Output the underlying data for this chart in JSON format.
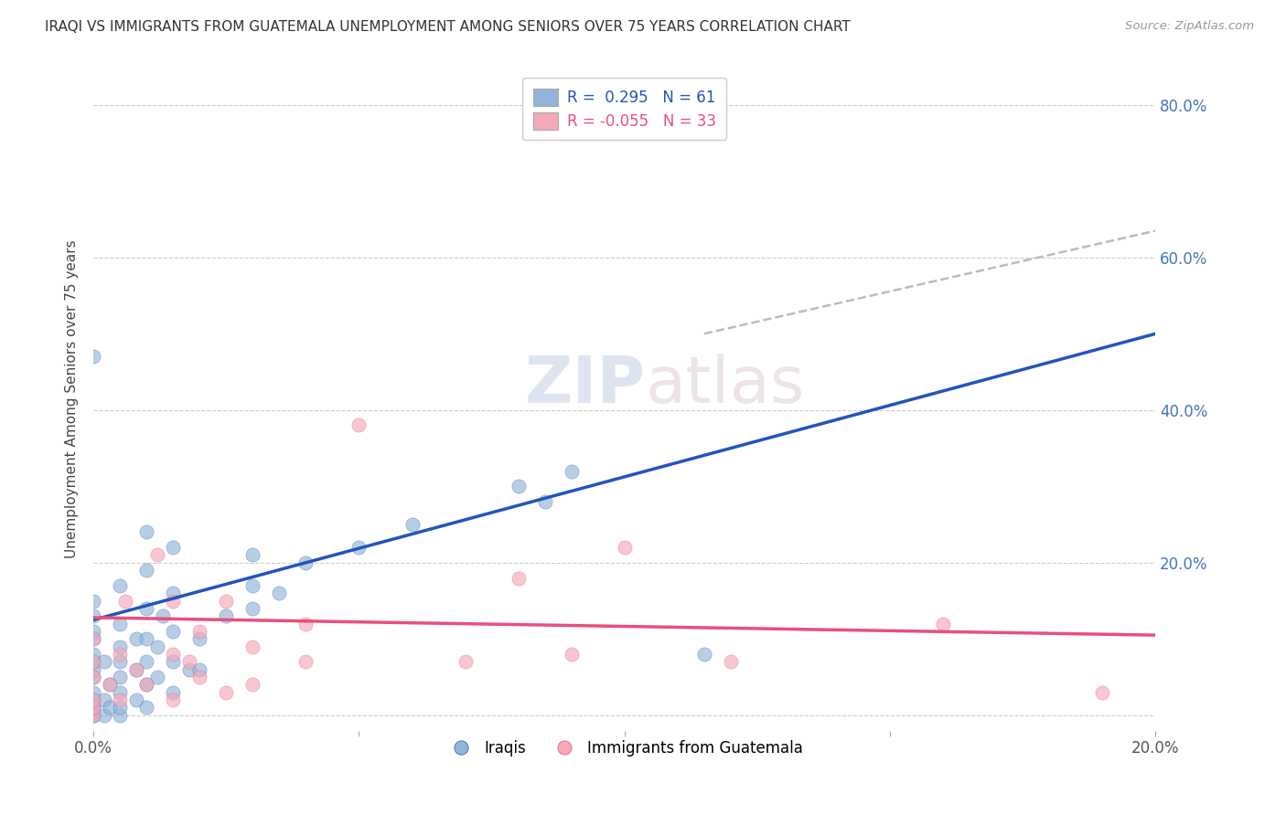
{
  "title": "IRAQI VS IMMIGRANTS FROM GUATEMALA UNEMPLOYMENT AMONG SENIORS OVER 75 YEARS CORRELATION CHART",
  "source": "Source: ZipAtlas.com",
  "ylabel": "Unemployment Among Seniors over 75 years",
  "xlim": [
    0.0,
    0.2
  ],
  "ylim": [
    -0.02,
    0.85
  ],
  "ytick_values": [
    0.0,
    0.2,
    0.4,
    0.6,
    0.8
  ],
  "ytick_labels": [
    "",
    "20.0%",
    "40.0%",
    "60.0%",
    "80.0%"
  ],
  "blue_R": 0.295,
  "blue_N": 61,
  "pink_R": -0.055,
  "pink_N": 33,
  "blue_color": "#92B4D8",
  "pink_color": "#F4A8B8",
  "blue_line_color": "#2255BB",
  "pink_line_color": "#E8507A",
  "dashed_line_color": "#BBBBBB",
  "blue_scatter_x": [
    0.0,
    0.0,
    0.0,
    0.0,
    0.0,
    0.0,
    0.0,
    0.0,
    0.0,
    0.0,
    0.0,
    0.0,
    0.0,
    0.0,
    0.0,
    0.002,
    0.002,
    0.002,
    0.003,
    0.003,
    0.005,
    0.005,
    0.005,
    0.005,
    0.005,
    0.005,
    0.005,
    0.005,
    0.008,
    0.008,
    0.008,
    0.01,
    0.01,
    0.01,
    0.01,
    0.01,
    0.01,
    0.01,
    0.012,
    0.012,
    0.013,
    0.015,
    0.015,
    0.015,
    0.015,
    0.015,
    0.018,
    0.02,
    0.02,
    0.025,
    0.03,
    0.03,
    0.03,
    0.035,
    0.04,
    0.05,
    0.06,
    0.08,
    0.085,
    0.09,
    0.115
  ],
  "blue_scatter_y": [
    0.0,
    0.0,
    0.01,
    0.01,
    0.02,
    0.03,
    0.05,
    0.06,
    0.07,
    0.08,
    0.1,
    0.11,
    0.13,
    0.15,
    0.47,
    0.0,
    0.02,
    0.07,
    0.01,
    0.04,
    0.0,
    0.01,
    0.03,
    0.05,
    0.07,
    0.09,
    0.12,
    0.17,
    0.02,
    0.06,
    0.1,
    0.01,
    0.04,
    0.07,
    0.1,
    0.14,
    0.19,
    0.24,
    0.05,
    0.09,
    0.13,
    0.03,
    0.07,
    0.11,
    0.16,
    0.22,
    0.06,
    0.06,
    0.1,
    0.13,
    0.14,
    0.17,
    0.21,
    0.16,
    0.2,
    0.22,
    0.25,
    0.3,
    0.28,
    0.32,
    0.08
  ],
  "pink_scatter_x": [
    0.0,
    0.0,
    0.0,
    0.0,
    0.0,
    0.0,
    0.003,
    0.005,
    0.005,
    0.006,
    0.008,
    0.01,
    0.012,
    0.015,
    0.015,
    0.015,
    0.018,
    0.02,
    0.02,
    0.025,
    0.025,
    0.03,
    0.03,
    0.04,
    0.04,
    0.05,
    0.07,
    0.08,
    0.09,
    0.1,
    0.12,
    0.16,
    0.19
  ],
  "pink_scatter_y": [
    0.0,
    0.01,
    0.02,
    0.05,
    0.07,
    0.1,
    0.04,
    0.02,
    0.08,
    0.15,
    0.06,
    0.04,
    0.21,
    0.02,
    0.08,
    0.15,
    0.07,
    0.05,
    0.11,
    0.03,
    0.15,
    0.04,
    0.09,
    0.07,
    0.12,
    0.38,
    0.07,
    0.18,
    0.08,
    0.22,
    0.07,
    0.12,
    0.03
  ],
  "blue_trend_x": [
    0.0,
    0.2
  ],
  "blue_trend_y": [
    0.125,
    0.5
  ],
  "pink_trend_x": [
    0.0,
    0.2
  ],
  "pink_trend_y": [
    0.128,
    0.105
  ],
  "dashed_trend_x": [
    0.115,
    0.2
  ],
  "dashed_trend_y": [
    0.5,
    0.635
  ],
  "background_color": "#FFFFFF",
  "grid_color": "#CCCCCC"
}
